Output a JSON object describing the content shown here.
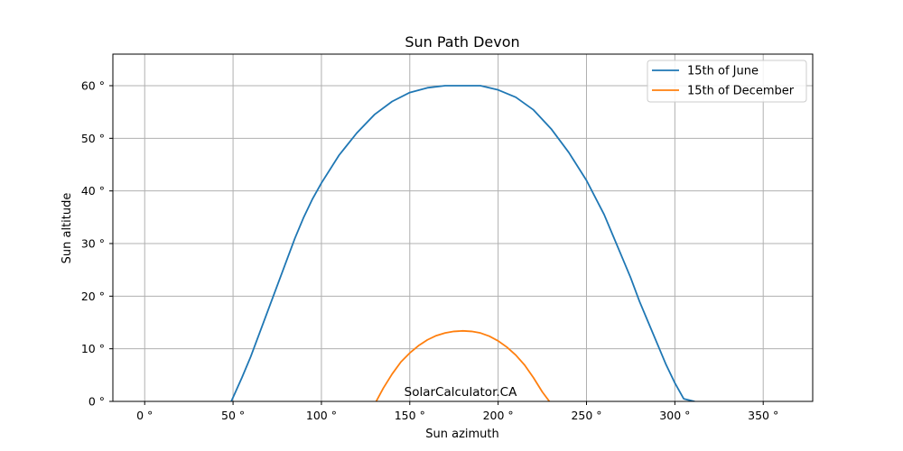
{
  "chart_data": {
    "type": "line",
    "title": "Sun Path Devon",
    "xlabel": "Sun azimuth",
    "ylabel": "Sun altitude",
    "xlim": [
      -18,
      378
    ],
    "ylim": [
      0,
      66
    ],
    "xticks": [
      0,
      50,
      100,
      150,
      200,
      250,
      300,
      350
    ],
    "yticks": [
      0,
      10,
      20,
      30,
      40,
      50,
      60
    ],
    "xtick_labels": [
      "0 °",
      "50 °",
      "100 °",
      "150 °",
      "200 °",
      "250 °",
      "300 °",
      "350 °"
    ],
    "ytick_labels": [
      "0 °",
      "10 °",
      "20 °",
      "30 °",
      "40 °",
      "50 °",
      "60 °"
    ],
    "grid": true,
    "legend_position": "top-right",
    "annotation": "SolarCalculator.CA",
    "series": [
      {
        "name": "15th of June",
        "color": "#1f77b4",
        "x": [
          49,
          55,
          60,
          65,
          70,
          75,
          80,
          85,
          90,
          95,
          100,
          110,
          120,
          130,
          140,
          150,
          160,
          170,
          180,
          190,
          200,
          210,
          220,
          230,
          240,
          250,
          260,
          265,
          270,
          275,
          280,
          285,
          290,
          295,
          300,
          305,
          311
        ],
        "y": [
          0,
          4.5,
          8.5,
          13,
          17.5,
          22,
          26.5,
          31,
          35,
          38.5,
          41.5,
          46.8,
          51,
          54.5,
          57,
          58.7,
          59.6,
          60,
          60,
          60,
          59.2,
          57.8,
          55.4,
          51.8,
          47.3,
          42,
          35.5,
          31.5,
          27.5,
          23.5,
          19,
          15,
          11,
          7,
          3.5,
          0.5,
          0
        ]
      },
      {
        "name": "15th of December",
        "color": "#ff7f0e",
        "x": [
          131,
          135,
          140,
          145,
          150,
          155,
          160,
          165,
          170,
          175,
          180,
          185,
          190,
          195,
          200,
          205,
          210,
          215,
          220,
          225,
          229
        ],
        "y": [
          0,
          2.5,
          5.2,
          7.5,
          9.2,
          10.6,
          11.7,
          12.5,
          13,
          13.3,
          13.4,
          13.3,
          13,
          12.4,
          11.5,
          10.3,
          8.8,
          6.9,
          4.5,
          1.8,
          0
        ]
      }
    ]
  }
}
